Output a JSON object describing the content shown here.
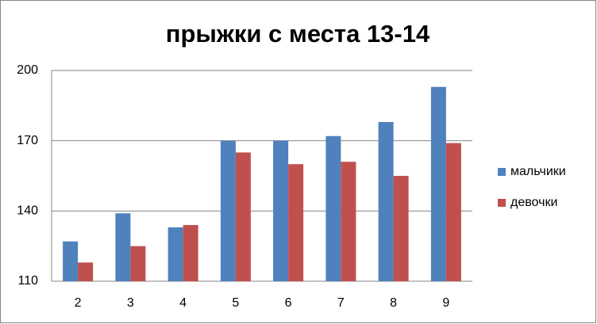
{
  "chart_data": {
    "type": "bar",
    "title": "прыжки с места 13-14",
    "categories": [
      "2",
      "3",
      "4",
      "5",
      "6",
      "7",
      "8",
      "9"
    ],
    "series": [
      {
        "name": "мальчики",
        "color": "#4f81bd",
        "values": [
          127,
          139,
          133,
          170,
          170,
          172,
          178,
          193
        ]
      },
      {
        "name": "девочки",
        "color": "#c0504d",
        "values": [
          118,
          125,
          134,
          165,
          160,
          161,
          155,
          169
        ]
      }
    ],
    "ylim": [
      110,
      200
    ],
    "yticks": [
      110,
      140,
      170,
      200
    ],
    "grid": true,
    "legend": "right"
  }
}
